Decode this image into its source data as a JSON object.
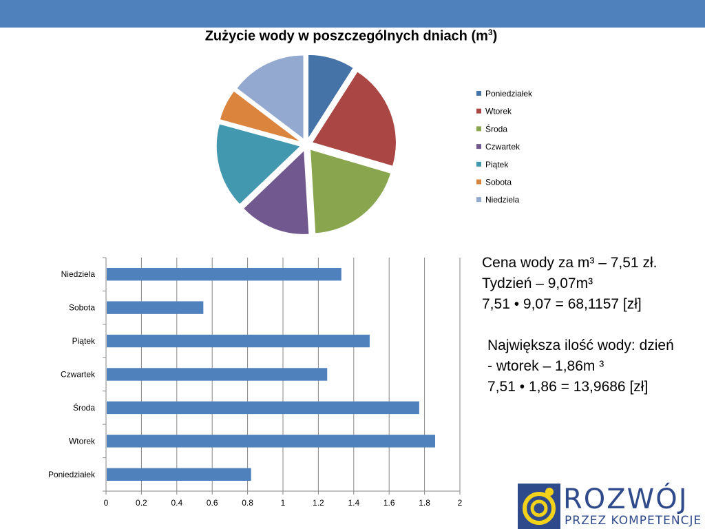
{
  "slide": {
    "pie_title_text": "Zużycie wody w poszczególnych dniach (m",
    "pie_title_sup": "3",
    "pie_title_close": ")",
    "info_block_1": [
      "Cena wody za m³ – 7,51 zł.",
      "Tydzień – 9,07m³",
      "7,51 • 9,07 = 68,1157 [zł]"
    ],
    "info_block_2": [
      "Największa ilość wody: dzień",
      "- wtorek – 1,86m ³",
      "7,51 • 1,86 = 13,9686 [zł]"
    ],
    "logo": {
      "word": "ROZWÓJ",
      "tagline": "PRZEZ KOMPETENCJE"
    },
    "band_color": "#4f81bd"
  },
  "chart_data": [
    {
      "type": "pie",
      "title": "Zużycie wody w poszczególnych dniach (m³)",
      "categories": [
        "Poniedziałek",
        "Wtorek",
        "Środa",
        "Czwartek",
        "Piątek",
        "Sobota",
        "Niedziela"
      ],
      "values": [
        0.82,
        1.86,
        1.77,
        1.25,
        1.49,
        0.55,
        1.33
      ],
      "colors": [
        "#4572a7",
        "#aa4643",
        "#89a54e",
        "#71588f",
        "#4198af",
        "#db843d",
        "#93a9cf"
      ],
      "exploded": true,
      "legend": "right"
    },
    {
      "type": "bar",
      "orientation": "horizontal",
      "categories": [
        "Poniedziałek",
        "Wtorek",
        "Środa",
        "Czwartek",
        "Piątek",
        "Sobota",
        "Niedziela"
      ],
      "values": [
        0.82,
        1.86,
        1.77,
        1.25,
        1.49,
        0.55,
        1.33
      ],
      "xlim": [
        0,
        2
      ],
      "xticks": [
        "0",
        "0.2",
        "0.4",
        "0.6",
        "0.8",
        "1",
        "1.2",
        "1.4",
        "1.6",
        "1.8",
        "2"
      ],
      "bar_color": "#4f81bd",
      "grid": true
    }
  ]
}
